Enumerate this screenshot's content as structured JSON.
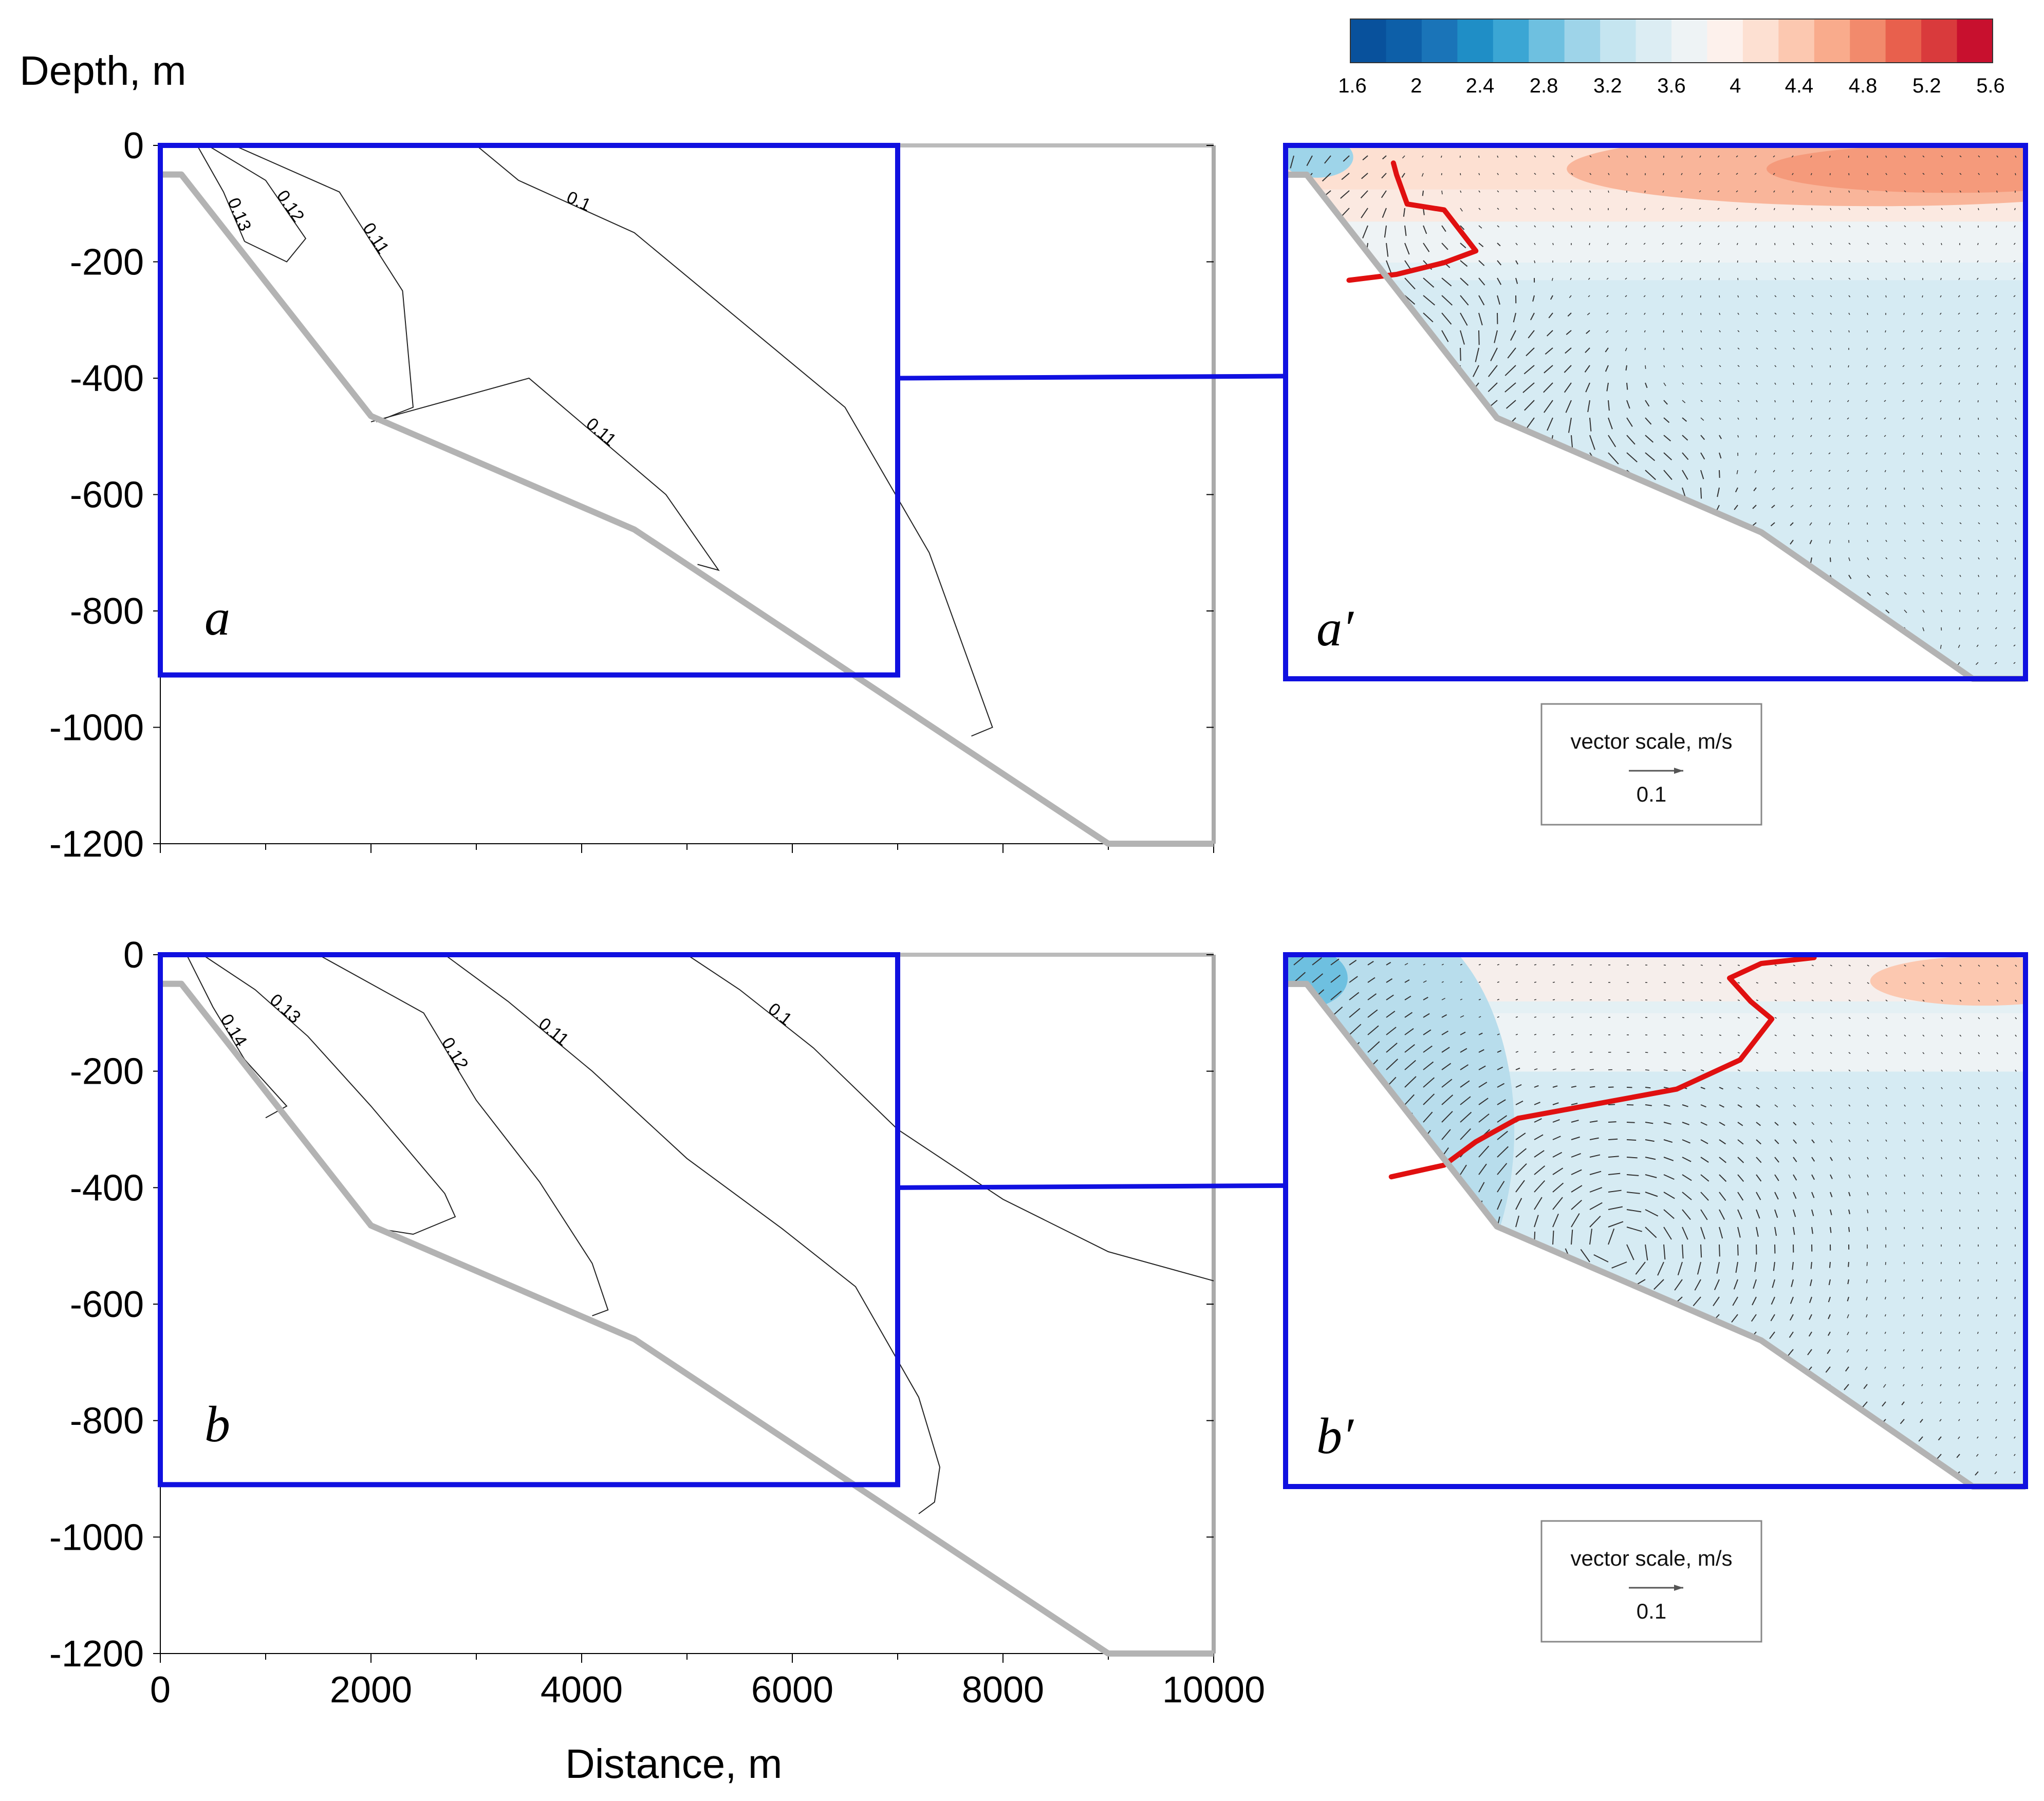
{
  "figure": {
    "y_title": "Depth, m",
    "x_title": "Distance, m",
    "x_ticks": [
      "0",
      "2000",
      "4000",
      "6000",
      "8000",
      "10000"
    ],
    "y_ticks": [
      "0",
      "-200",
      "-400",
      "-600",
      "-800",
      "-1000",
      "-1200"
    ],
    "colorbar": {
      "ticks": [
        "1.6",
        "2",
        "2.4",
        "2.8",
        "3.2",
        "3.6",
        "4",
        "4.4",
        "4.8",
        "5.2",
        "5.6"
      ],
      "colors": [
        "#08519c",
        "#0d5fa8",
        "#1a74b8",
        "#1f8ec6",
        "#3ba6d4",
        "#6ec0e0",
        "#9ed4e9",
        "#c5e5f0",
        "#dcedf3",
        "#eef3f5",
        "#fdf1ec",
        "#fde0d2",
        "#fcc8b0",
        "#f9ab8c",
        "#f28a6c",
        "#e8604d",
        "#d93a3c",
        "#c8102e"
      ]
    },
    "vector_scale": {
      "title": "vector scale, m/s",
      "value": "0.1"
    }
  },
  "chart_data": [
    {
      "type": "contour",
      "panel": "a",
      "xlabel": "Distance, m",
      "ylabel": "Depth, m",
      "xlim": [
        0,
        10000
      ],
      "ylim": [
        -1200,
        0
      ],
      "bottom_profile": {
        "x": [
          0,
          200,
          2000,
          4500,
          9000,
          10000
        ],
        "y": [
          -50,
          -50,
          -465,
          -660,
          -1200,
          -1200
        ]
      },
      "inset_box": {
        "x": [
          0,
          7000
        ],
        "y": [
          -910,
          0
        ]
      },
      "contour_levels": [
        {
          "level": "0.13",
          "points": [
            [
              350,
              0
            ],
            [
              600,
              -80
            ],
            [
              800,
              -165
            ]
          ]
        },
        {
          "level": "0.12",
          "points": [
            [
              450,
              0
            ],
            [
              1000,
              -60
            ],
            [
              1380,
              -160
            ],
            [
              1200,
              -200
            ],
            [
              800,
              -165
            ]
          ]
        },
        {
          "level": "0.11",
          "points": [
            [
              700,
              0
            ],
            [
              1700,
              -80
            ],
            [
              2300,
              -250
            ],
            [
              2400,
              -450
            ],
            [
              2050,
              -475
            ]
          ]
        },
        {
          "level": "0.11",
          "points": [
            [
              2000,
              -475
            ],
            [
              3500,
              -400
            ],
            [
              4800,
              -600
            ],
            [
              5300,
              -730
            ],
            [
              5100,
              -720
            ]
          ]
        },
        {
          "level": "0.1",
          "points": [
            [
              3000,
              0
            ],
            [
              3400,
              -60
            ],
            [
              4500,
              -150
            ],
            [
              5500,
              -300
            ],
            [
              6500,
              -450
            ],
            [
              7300,
              -700
            ],
            [
              7900,
              -1000
            ],
            [
              7700,
              -1015
            ]
          ]
        }
      ]
    },
    {
      "type": "contour",
      "panel": "b",
      "xlabel": "Distance, m",
      "ylabel": "Depth, m",
      "xlim": [
        0,
        10000
      ],
      "ylim": [
        -1200,
        0
      ],
      "bottom_profile": {
        "x": [
          0,
          200,
          2000,
          4500,
          9000,
          10000
        ],
        "y": [
          -50,
          -50,
          -465,
          -660,
          -1200,
          -1200
        ]
      },
      "inset_box": {
        "x": [
          0,
          7000
        ],
        "y": [
          -910,
          0
        ]
      },
      "contour_levels": [
        {
          "level": "0.14",
          "points": [
            [
              250,
              0
            ],
            [
              500,
              -90
            ],
            [
              800,
              -180
            ],
            [
              1200,
              -260
            ],
            [
              1000,
              -280
            ]
          ]
        },
        {
          "level": "0.13",
          "points": [
            [
              400,
              0
            ],
            [
              900,
              -60
            ],
            [
              1400,
              -140
            ],
            [
              2000,
              -260
            ],
            [
              2700,
              -410
            ],
            [
              2800,
              -450
            ],
            [
              2400,
              -480
            ],
            [
              2050,
              -470
            ]
          ]
        },
        {
          "level": "0.12",
          "points": [
            [
              1500,
              0
            ],
            [
              2500,
              -100
            ],
            [
              3000,
              -250
            ],
            [
              3600,
              -390
            ],
            [
              4100,
              -530
            ],
            [
              4250,
              -610
            ],
            [
              4100,
              -620
            ]
          ]
        },
        {
          "level": "0.11",
          "points": [
            [
              2700,
              0
            ],
            [
              3300,
              -80
            ],
            [
              4100,
              -200
            ],
            [
              5000,
              -350
            ],
            [
              5900,
              -470
            ],
            [
              6600,
              -570
            ],
            [
              7200,
              -760
            ],
            [
              7400,
              -880
            ],
            [
              7350,
              -940
            ],
            [
              7200,
              -960
            ]
          ]
        },
        {
          "level": "0.1",
          "points": [
            [
              5000,
              0
            ],
            [
              5500,
              -60
            ],
            [
              6200,
              -160
            ],
            [
              7000,
              -300
            ],
            [
              8000,
              -420
            ],
            [
              9000,
              -510
            ],
            [
              10000,
              -560
            ]
          ]
        }
      ]
    },
    {
      "type": "heatmap",
      "panel": "a'",
      "colorbar_range": [
        1.6,
        5.6
      ],
      "colorbar_ticks": [
        1.6,
        2,
        2.4,
        2.8,
        3.2,
        3.6,
        4,
        4.4,
        4.8,
        5.2,
        5.6
      ],
      "vector_scale_m_s": 0.1,
      "red_line": [
        [
          1020,
          -30
        ],
        [
          1050,
          -50
        ],
        [
          1150,
          -100
        ],
        [
          1500,
          -110
        ],
        [
          1800,
          -180
        ],
        [
          1500,
          -200
        ],
        [
          1050,
          -220
        ],
        [
          600,
          -230
        ]
      ]
    },
    {
      "type": "heatmap",
      "panel": "b'",
      "colorbar_range": [
        1.6,
        5.6
      ],
      "colorbar_ticks": [
        1.6,
        2,
        2.4,
        2.8,
        3.2,
        3.6,
        4,
        4.4,
        4.8,
        5.2,
        5.6
      ],
      "vector_scale_m_s": 0.1,
      "red_line": [
        [
          5000,
          -5
        ],
        [
          4500,
          -15
        ],
        [
          4200,
          -40
        ],
        [
          4400,
          -80
        ],
        [
          4600,
          -110
        ],
        [
          4300,
          -180
        ],
        [
          3700,
          -230
        ],
        [
          2800,
          -260
        ],
        [
          2200,
          -280
        ],
        [
          1800,
          -320
        ],
        [
          1500,
          -360
        ],
        [
          1000,
          -380
        ]
      ]
    }
  ]
}
